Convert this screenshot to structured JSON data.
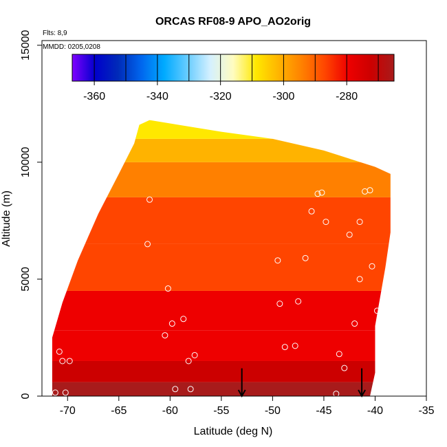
{
  "chart_data": {
    "type": "heatmap",
    "title": "ORCAS RF08-9 APO_AO2orig",
    "notes": [
      "Flts: 8,9",
      "MMDD: 0205,0208"
    ],
    "xlabel": "Latitude (deg N)",
    "ylabel": "Altitude (m)",
    "xlim": [
      -72.5,
      -35
    ],
    "ylim": [
      0,
      15200
    ],
    "xticks": [
      -70,
      -65,
      -60,
      -55,
      -50,
      -45,
      -40,
      -35
    ],
    "yticks": [
      0,
      5000,
      10000,
      15000
    ],
    "colorbar": {
      "range": [
        -367,
        -265
      ],
      "ticks": [
        -360,
        -340,
        -320,
        -300,
        -280
      ],
      "breaks": [
        -367,
        -360,
        -350,
        -340,
        -330,
        -320,
        -310,
        -300,
        -290,
        -280,
        -270,
        -265
      ],
      "colors": [
        "#7f00ff",
        "#0000cc",
        "#002bb8",
        "#0066ee",
        "#00aaff",
        "#66ccff",
        "#d4f0ff",
        "#fffcc0",
        "#ffe800",
        "#ffb300",
        "#ff8000",
        "#ff4500",
        "#ee0000",
        "#cc0000",
        "#a81b1b"
      ]
    },
    "field_regions": [
      {
        "level": "top",
        "polygon": [
          [
            -63,
            11600
          ],
          [
            -62,
            11800
          ],
          [
            -55,
            11300
          ],
          [
            -50,
            11000
          ],
          [
            -45,
            10500
          ],
          [
            -40,
            9800
          ],
          [
            -38.5,
            9500
          ],
          [
            -38.5,
            7000
          ],
          [
            -39,
            5500
          ],
          [
            -40,
            3000
          ],
          [
            -40,
            1000
          ],
          [
            -40.5,
            0
          ],
          [
            -71.5,
            0
          ],
          [
            -71.5,
            2500
          ],
          [
            -70.5,
            4000
          ],
          [
            -69,
            5800
          ],
          [
            -67,
            7800
          ],
          [
            -65,
            9500
          ],
          [
            -63.5,
            10800
          ]
        ]
      }
    ],
    "color_field": [
      {
        "alt_range": [
          0,
          600
        ],
        "value": -270
      },
      {
        "alt_range": [
          600,
          1500
        ],
        "value": -275
      },
      {
        "alt_range": [
          1500,
          2800
        ],
        "value": -280
      },
      {
        "alt_range": [
          2800,
          4500
        ],
        "value": -285
      },
      {
        "alt_range": [
          4500,
          6500
        ],
        "value": -289
      },
      {
        "alt_range": [
          6500,
          8500
        ],
        "value": -292
      },
      {
        "alt_range": [
          8500,
          10000
        ],
        "value": -295
      },
      {
        "alt_range": [
          10000,
          11000
        ],
        "value": -300
      },
      {
        "alt_range": [
          11000,
          11800
        ],
        "value": -308
      }
    ],
    "samples": [
      {
        "x": -70.8,
        "y": 1900
      },
      {
        "x": -70.5,
        "y": 1500
      },
      {
        "x": -69.8,
        "y": 1500
      },
      {
        "x": -71.2,
        "y": 150
      },
      {
        "x": -70.2,
        "y": 150
      },
      {
        "x": -62,
        "y": 8400
      },
      {
        "x": -62.2,
        "y": 6500
      },
      {
        "x": -60.2,
        "y": 4600
      },
      {
        "x": -59.8,
        "y": 3100
      },
      {
        "x": -60.5,
        "y": 2600
      },
      {
        "x": -58.7,
        "y": 3300
      },
      {
        "x": -58.2,
        "y": 1500
      },
      {
        "x": -57.6,
        "y": 1750
      },
      {
        "x": -59.5,
        "y": 300
      },
      {
        "x": -58.0,
        "y": 300
      },
      {
        "x": -49.5,
        "y": 5800
      },
      {
        "x": -49.3,
        "y": 3950
      },
      {
        "x": -47.5,
        "y": 4050
      },
      {
        "x": -48.8,
        "y": 2100
      },
      {
        "x": -47.8,
        "y": 2150
      },
      {
        "x": -46.8,
        "y": 5900
      },
      {
        "x": -46.2,
        "y": 7900
      },
      {
        "x": -45.6,
        "y": 8650
      },
      {
        "x": -45.2,
        "y": 8700
      },
      {
        "x": -44.8,
        "y": 7450
      },
      {
        "x": -43.5,
        "y": 1800
      },
      {
        "x": -43.0,
        "y": 1200
      },
      {
        "x": -43.8,
        "y": 100
      },
      {
        "x": -42.5,
        "y": 6900
      },
      {
        "x": -42.0,
        "y": 3100
      },
      {
        "x": -41.5,
        "y": 5000
      },
      {
        "x": -41.5,
        "y": 7450
      },
      {
        "x": -41.0,
        "y": 8750
      },
      {
        "x": -40.5,
        "y": 8800
      },
      {
        "x": -40.3,
        "y": 5550
      },
      {
        "x": -39.8,
        "y": 3650
      },
      {
        "x": -39.6,
        "y": 1800
      },
      {
        "x": -39.2,
        "y": 1000
      },
      {
        "x": -39.5,
        "y": 100
      }
    ],
    "arrows": [
      {
        "x": -53,
        "y_top": 600,
        "y_bottom": 0
      },
      {
        "x": -41.3,
        "y_top": 600,
        "y_bottom": 0
      }
    ]
  }
}
